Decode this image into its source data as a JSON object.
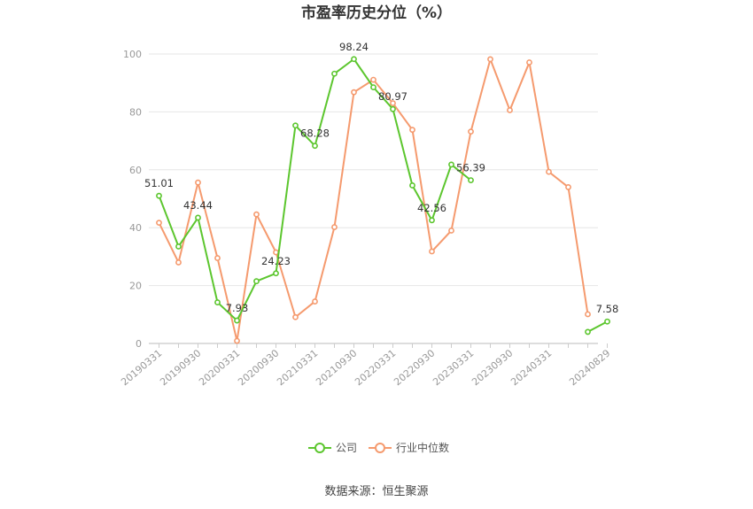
{
  "chart_data": {
    "type": "line",
    "title": "市盈率历史分位（%）",
    "xlabel": "",
    "ylabel": "",
    "ylim": [
      0,
      100
    ],
    "yticks": [
      0,
      20,
      40,
      60,
      80,
      100
    ],
    "xtick_labels": [
      "20190331",
      "20190930",
      "20200331",
      "20200930",
      "20210331",
      "20210930",
      "20220331",
      "20220930",
      "20230331",
      "20230930",
      "20240331",
      "20240829"
    ],
    "grid": true,
    "legend_position": "bottom",
    "series": [
      {
        "name": "公司",
        "color": "#5cc62e",
        "values": [
          51.01,
          33.5,
          43.44,
          14.2,
          7.93,
          21.5,
          24.23,
          75.3,
          68.28,
          93.2,
          98.24,
          88.5,
          80.97,
          54.6,
          42.56,
          61.8,
          56.39,
          null,
          null,
          null,
          null,
          null,
          4.0,
          7.58
        ],
        "labels": {
          "0": "51.01",
          "2": "43.44",
          "4": "7.93",
          "6": "24.23",
          "8": "68.28",
          "10": "98.24",
          "12": "80.97",
          "14": "42.56",
          "16": "56.39",
          "23": "7.58"
        }
      },
      {
        "name": "行业中位数",
        "color": "#f59a6e",
        "values": [
          41.7,
          28.0,
          55.6,
          29.5,
          0.9,
          44.6,
          31.5,
          9.1,
          14.5,
          40.2,
          86.8,
          91.1,
          83.0,
          73.8,
          31.8,
          39.0,
          73.2,
          98.2,
          80.6,
          97.1,
          59.3,
          54.0,
          10.1,
          null
        ]
      }
    ]
  },
  "source": "数据来源：恒生聚源"
}
